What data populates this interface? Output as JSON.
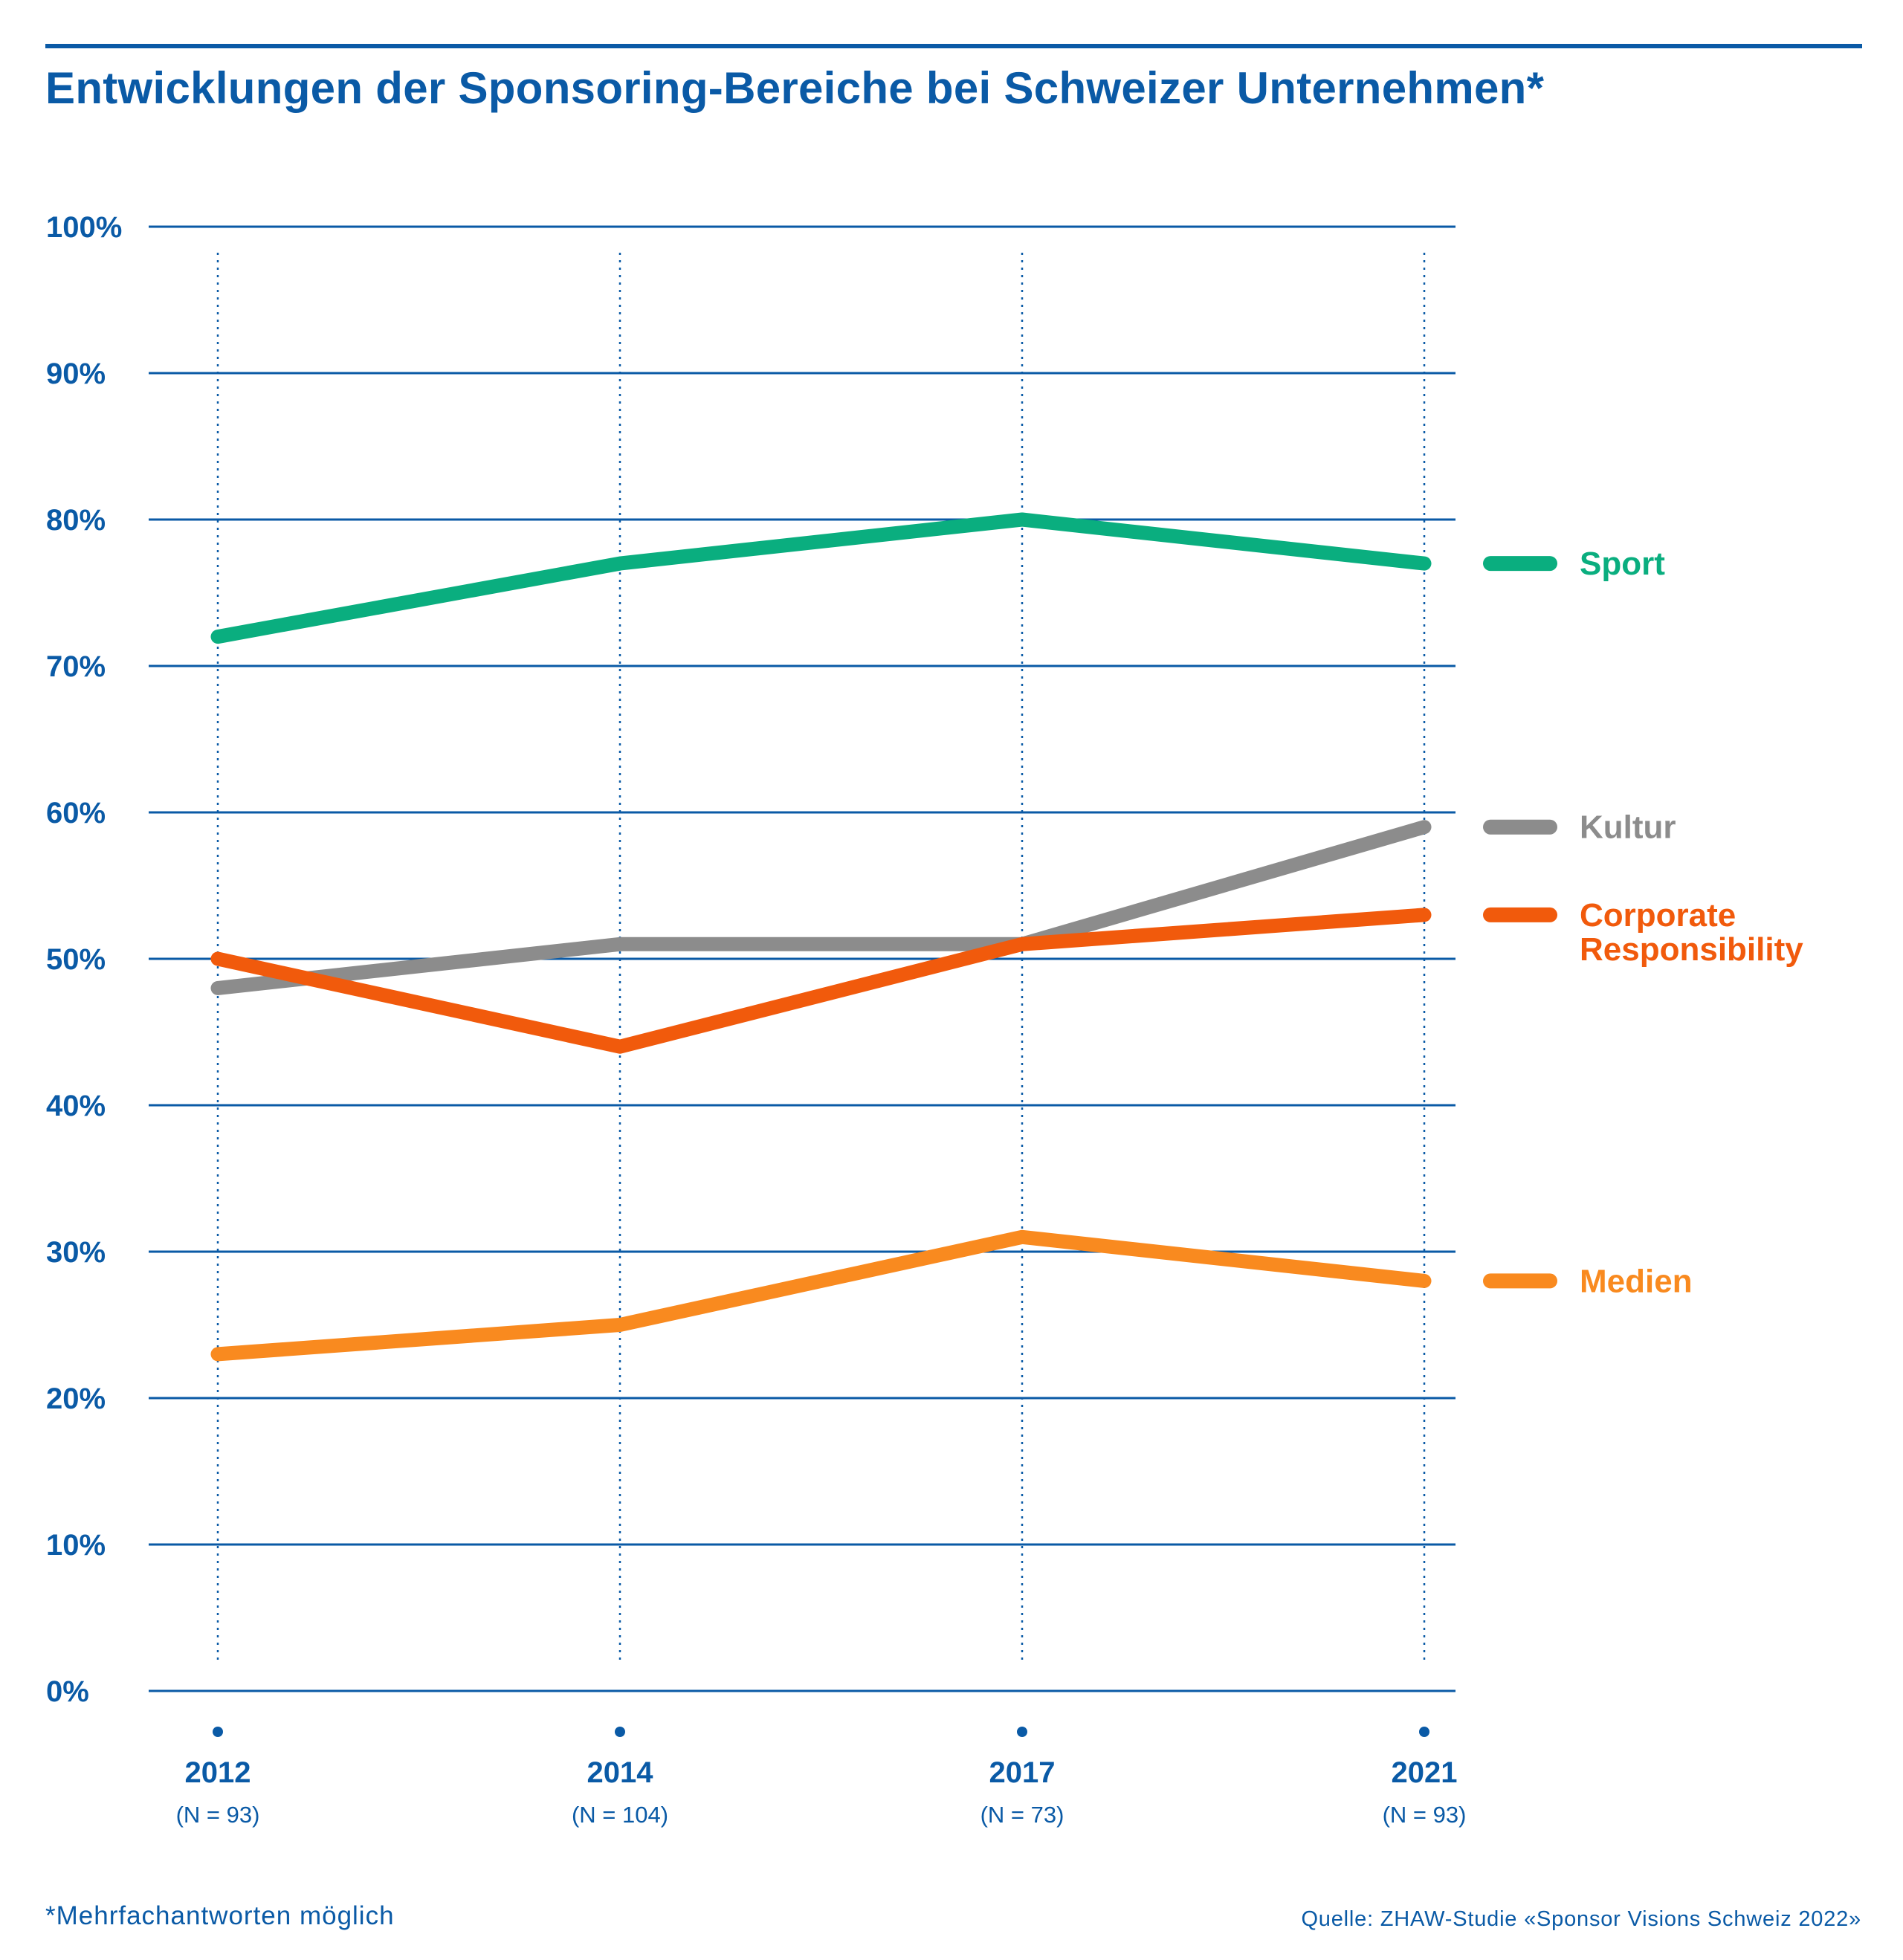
{
  "title": "Entwicklungen der Sponsoring-Bereiche bei Schweizer Unternehmen*",
  "footnote": "*Mehrfachantworten möglich",
  "source": "Quelle: ZHAW-Studie «Sponsor Visions Schweiz 2022»",
  "colors": {
    "text": "#0a5aa6",
    "grid": "#0a5aa6"
  },
  "chart_data": {
    "type": "line",
    "title": "Entwicklungen der Sponsoring-Bereiche bei Schweizer Unternehmen*",
    "xlabel": "",
    "ylabel": "",
    "x": [
      "2012",
      "2014",
      "2017",
      "2021"
    ],
    "x_sublabels": [
      "(N = 93)",
      "(N = 104)",
      "(N = 73)",
      "(N = 93)"
    ],
    "ylim": [
      0,
      100
    ],
    "yticks": [
      0,
      10,
      20,
      30,
      40,
      50,
      60,
      70,
      80,
      90,
      100
    ],
    "ytick_labels": [
      "0%",
      "10%",
      "20%",
      "30%",
      "40%",
      "50%",
      "60%",
      "70%",
      "80%",
      "90%",
      "100%"
    ],
    "grid": true,
    "legend_position": "right",
    "series": [
      {
        "name": "Sport",
        "color": "#0aae7f",
        "values": [
          72,
          77,
          80,
          77
        ]
      },
      {
        "name": "Kultur",
        "color": "#8c8c8c",
        "values": [
          48,
          51,
          51,
          59
        ]
      },
      {
        "name": "Corporate Responsibility",
        "color": "#f15a0c",
        "values": [
          50,
          44,
          51,
          53
        ]
      },
      {
        "name": "Medien",
        "color": "#f98a1f",
        "values": [
          23,
          25,
          31,
          28
        ]
      }
    ]
  }
}
